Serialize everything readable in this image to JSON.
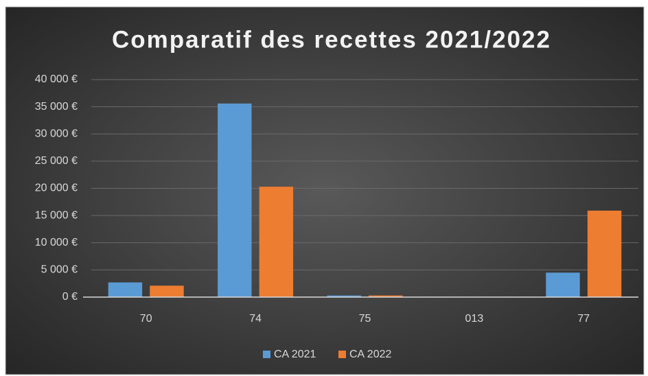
{
  "chart_data": {
    "type": "bar",
    "title": "Comparatif des recettes 2021/2022",
    "categories": [
      "70",
      "74",
      "75",
      "013",
      "77"
    ],
    "series": [
      {
        "name": "CA 2021",
        "color": "#5b9bd5",
        "values": [
          2700,
          35600,
          300,
          0,
          4500
        ]
      },
      {
        "name": "CA 2022",
        "color": "#ed7d31",
        "values": [
          2100,
          20300,
          300,
          0,
          15900
        ]
      }
    ],
    "ylim": [
      0,
      40000
    ],
    "yticks": [
      {
        "value": 0,
        "label": "0 €"
      },
      {
        "value": 5000,
        "label": "5 000 €"
      },
      {
        "value": 10000,
        "label": "10 000 €"
      },
      {
        "value": 15000,
        "label": "15 000 €"
      },
      {
        "value": 20000,
        "label": "20 000 €"
      },
      {
        "value": 25000,
        "label": "25 000 €"
      },
      {
        "value": 30000,
        "label": "30 000 €"
      },
      {
        "value": 35000,
        "label": "35 000 €"
      },
      {
        "value": 40000,
        "label": "40 000 €"
      }
    ],
    "grid": true,
    "legend": "bottom"
  }
}
